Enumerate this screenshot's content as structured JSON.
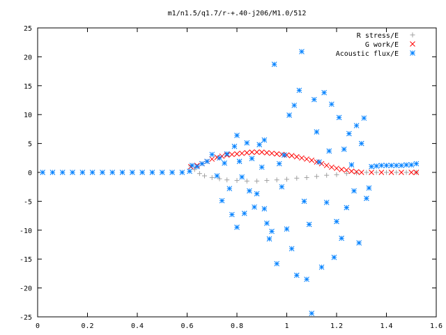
{
  "chart_data": {
    "type": "scatter",
    "title": "m1/n1.5/q1.7/r-+.40-j206/M1.0/512",
    "xlabel": "",
    "ylabel": "",
    "xlim": [
      0,
      1.6
    ],
    "ylim": [
      -25,
      25
    ],
    "x_ticks": [
      "0",
      "0.2",
      "0.4",
      "0.6",
      "0.8",
      "1",
      "1.2",
      "1.4",
      "1.6"
    ],
    "y_ticks": [
      "25",
      "20",
      "15",
      "10",
      "5",
      "0",
      "-5",
      "-10",
      "-15",
      "-20",
      "-25"
    ],
    "grid": false,
    "legend_position": "top-right",
    "series": [
      {
        "name": "R stress/E",
        "marker": "+",
        "color": "#a0a0a0",
        "points": [
          [
            0.615,
            1.1
          ],
          [
            0.63,
            0.5
          ],
          [
            0.65,
            -0.2
          ],
          [
            0.67,
            -0.6
          ],
          [
            0.7,
            -0.9
          ],
          [
            0.73,
            -1.1
          ],
          [
            0.76,
            -1.3
          ],
          [
            0.8,
            -1.4
          ],
          [
            0.84,
            -1.5
          ],
          [
            0.88,
            -1.5
          ],
          [
            0.92,
            -1.4
          ],
          [
            0.96,
            -1.3
          ],
          [
            1.0,
            -1.2
          ],
          [
            1.04,
            -1.0
          ],
          [
            1.08,
            -0.9
          ],
          [
            1.12,
            -0.7
          ],
          [
            1.16,
            -0.5
          ],
          [
            1.2,
            -0.4
          ],
          [
            1.24,
            -0.2
          ],
          [
            1.28,
            -0.1
          ],
          [
            1.32,
            0.0
          ],
          [
            1.36,
            0.0
          ],
          [
            1.4,
            0.0
          ],
          [
            1.44,
            0.0
          ],
          [
            1.48,
            0.0
          ],
          [
            1.52,
            0.0
          ]
        ]
      },
      {
        "name": "G work/E",
        "marker": "x",
        "color": "#ff0000",
        "points": [
          [
            0.615,
            1.0
          ],
          [
            0.64,
            1.2
          ],
          [
            0.66,
            1.5
          ],
          [
            0.68,
            1.9
          ],
          [
            0.7,
            2.3
          ],
          [
            0.72,
            2.6
          ],
          [
            0.74,
            2.8
          ],
          [
            0.76,
            3.0
          ],
          [
            0.78,
            3.1
          ],
          [
            0.8,
            3.2
          ],
          [
            0.82,
            3.3
          ],
          [
            0.84,
            3.4
          ],
          [
            0.86,
            3.5
          ],
          [
            0.88,
            3.5
          ],
          [
            0.9,
            3.5
          ],
          [
            0.92,
            3.4
          ],
          [
            0.94,
            3.3
          ],
          [
            0.96,
            3.2
          ],
          [
            0.98,
            3.1
          ],
          [
            1.0,
            3.0
          ],
          [
            1.02,
            2.9
          ],
          [
            1.04,
            2.7
          ],
          [
            1.06,
            2.5
          ],
          [
            1.08,
            2.3
          ],
          [
            1.1,
            2.1
          ],
          [
            1.12,
            1.8
          ],
          [
            1.14,
            1.5
          ],
          [
            1.16,
            1.2
          ],
          [
            1.18,
            0.9
          ],
          [
            1.2,
            0.7
          ],
          [
            1.22,
            0.5
          ],
          [
            1.24,
            0.4
          ],
          [
            1.26,
            0.2
          ],
          [
            1.28,
            0.1
          ],
          [
            1.3,
            0.0
          ],
          [
            1.34,
            0.0
          ],
          [
            1.38,
            0.0
          ],
          [
            1.42,
            0.0
          ],
          [
            1.46,
            0.0
          ],
          [
            1.5,
            0.0
          ],
          [
            1.52,
            0.0
          ]
        ]
      },
      {
        "name": "Acoustic flux/E",
        "marker": "*",
        "color": "#0080ff",
        "points": [
          [
            0.02,
            0.0
          ],
          [
            0.06,
            0.0
          ],
          [
            0.1,
            0.0
          ],
          [
            0.14,
            0.0
          ],
          [
            0.18,
            0.0
          ],
          [
            0.22,
            0.0
          ],
          [
            0.26,
            0.0
          ],
          [
            0.3,
            0.0
          ],
          [
            0.34,
            0.0
          ],
          [
            0.38,
            0.0
          ],
          [
            0.42,
            0.0
          ],
          [
            0.46,
            0.0
          ],
          [
            0.5,
            0.0
          ],
          [
            0.54,
            0.0
          ],
          [
            0.58,
            0.0
          ],
          [
            0.61,
            0.2
          ],
          [
            0.62,
            1.2
          ],
          [
            0.64,
            1.0
          ],
          [
            0.66,
            1.5
          ],
          [
            0.68,
            1.9
          ],
          [
            0.7,
            3.1
          ],
          [
            0.72,
            -0.6
          ],
          [
            0.73,
            2.5
          ],
          [
            0.74,
            -4.9
          ],
          [
            0.75,
            1.6
          ],
          [
            0.76,
            3.2
          ],
          [
            0.77,
            -2.8
          ],
          [
            0.78,
            -7.3
          ],
          [
            0.79,
            4.5
          ],
          [
            0.8,
            -9.5
          ],
          [
            0.8,
            6.4
          ],
          [
            0.81,
            1.9
          ],
          [
            0.82,
            -0.8
          ],
          [
            0.83,
            -7.1
          ],
          [
            0.84,
            5.1
          ],
          [
            0.85,
            -3.2
          ],
          [
            0.86,
            2.4
          ],
          [
            0.87,
            -6.0
          ],
          [
            0.88,
            -3.7
          ],
          [
            0.89,
            4.8
          ],
          [
            0.9,
            0.9
          ],
          [
            0.91,
            5.6
          ],
          [
            0.91,
            -6.3
          ],
          [
            0.92,
            -8.8
          ],
          [
            0.93,
            -11.5
          ],
          [
            0.94,
            -10.2
          ],
          [
            0.95,
            18.7
          ],
          [
            0.96,
            -15.8
          ],
          [
            0.97,
            1.5
          ],
          [
            0.98,
            -2.5
          ],
          [
            0.99,
            3.0
          ],
          [
            1.0,
            -9.8
          ],
          [
            1.01,
            9.9
          ],
          [
            1.02,
            -13.2
          ],
          [
            1.03,
            11.6
          ],
          [
            1.04,
            -17.8
          ],
          [
            1.05,
            14.2
          ],
          [
            1.06,
            20.9
          ],
          [
            1.07,
            -5.0
          ],
          [
            1.08,
            -18.5
          ],
          [
            1.09,
            -9.0
          ],
          [
            1.1,
            -24.4
          ],
          [
            1.11,
            12.6
          ],
          [
            1.12,
            7.0
          ],
          [
            1.13,
            1.8
          ],
          [
            1.14,
            -16.4
          ],
          [
            1.15,
            13.8
          ],
          [
            1.16,
            -5.2
          ],
          [
            1.17,
            3.7
          ],
          [
            1.18,
            11.8
          ],
          [
            1.19,
            -14.7
          ],
          [
            1.2,
            -8.5
          ],
          [
            1.21,
            9.5
          ],
          [
            1.22,
            -11.4
          ],
          [
            1.23,
            4.0
          ],
          [
            1.24,
            -6.1
          ],
          [
            1.25,
            6.7
          ],
          [
            1.26,
            1.3
          ],
          [
            1.27,
            -3.2
          ],
          [
            1.28,
            8.1
          ],
          [
            1.29,
            -12.2
          ],
          [
            1.3,
            5.0
          ],
          [
            1.31,
            9.4
          ],
          [
            1.32,
            -4.5
          ],
          [
            1.33,
            -2.7
          ],
          [
            1.34,
            1.0
          ],
          [
            1.36,
            1.1
          ],
          [
            1.38,
            1.2
          ],
          [
            1.4,
            1.2
          ],
          [
            1.42,
            1.2
          ],
          [
            1.44,
            1.2
          ],
          [
            1.46,
            1.2
          ],
          [
            1.48,
            1.3
          ],
          [
            1.5,
            1.3
          ],
          [
            1.52,
            1.5
          ]
        ]
      }
    ]
  }
}
